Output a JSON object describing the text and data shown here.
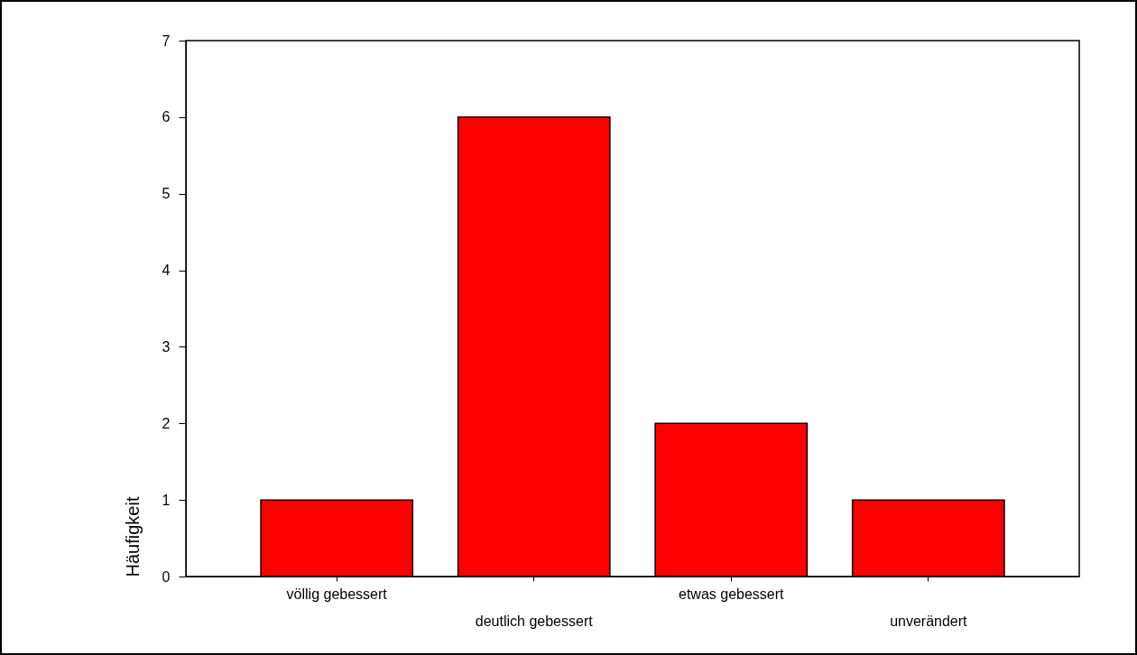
{
  "chart_data": {
    "type": "bar",
    "ylabel": "Häufigkeit",
    "categories": [
      "völlig gebessert",
      "deutlich gebessert",
      "etwas gebessert",
      "unverändert"
    ],
    "values": [
      1,
      6,
      2,
      1
    ],
    "color": "#ff0000",
    "ylim": [
      0,
      7
    ],
    "yticks": [
      0,
      1,
      2,
      3,
      4,
      5,
      6,
      7
    ],
    "grid": false
  }
}
